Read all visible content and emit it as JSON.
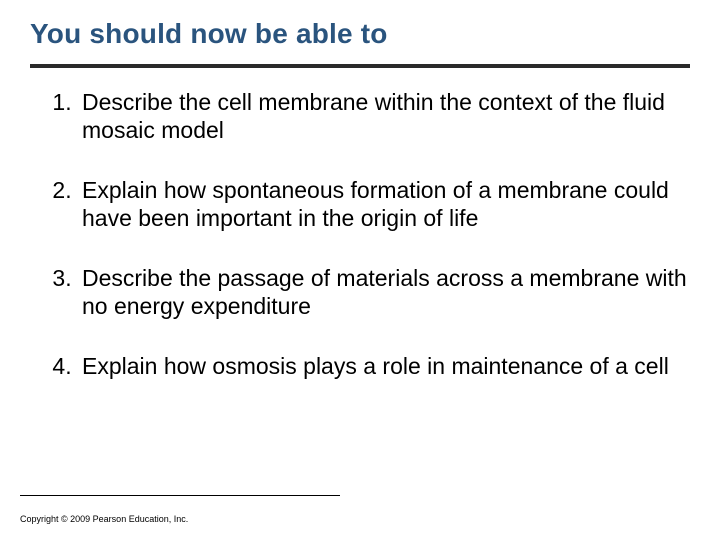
{
  "slide": {
    "title": "You should now be able to",
    "title_color": "#2a547e",
    "title_fontsize": 28,
    "hr_color": "#2a2a2a",
    "hr_thickness": 4,
    "background_color": "#ffffff",
    "body_fontsize": 23,
    "body_color": "#000000",
    "objectives": [
      "Describe the cell membrane within the context of the fluid mosaic model",
      "Explain how spontaneous formation of a membrane could have been important in the origin of life",
      "Describe the passage of materials across a membrane with no energy expenditure",
      "Explain how osmosis plays a role in maintenance of a cell"
    ],
    "copyright": "Copyright © 2009 Pearson Education, Inc."
  }
}
